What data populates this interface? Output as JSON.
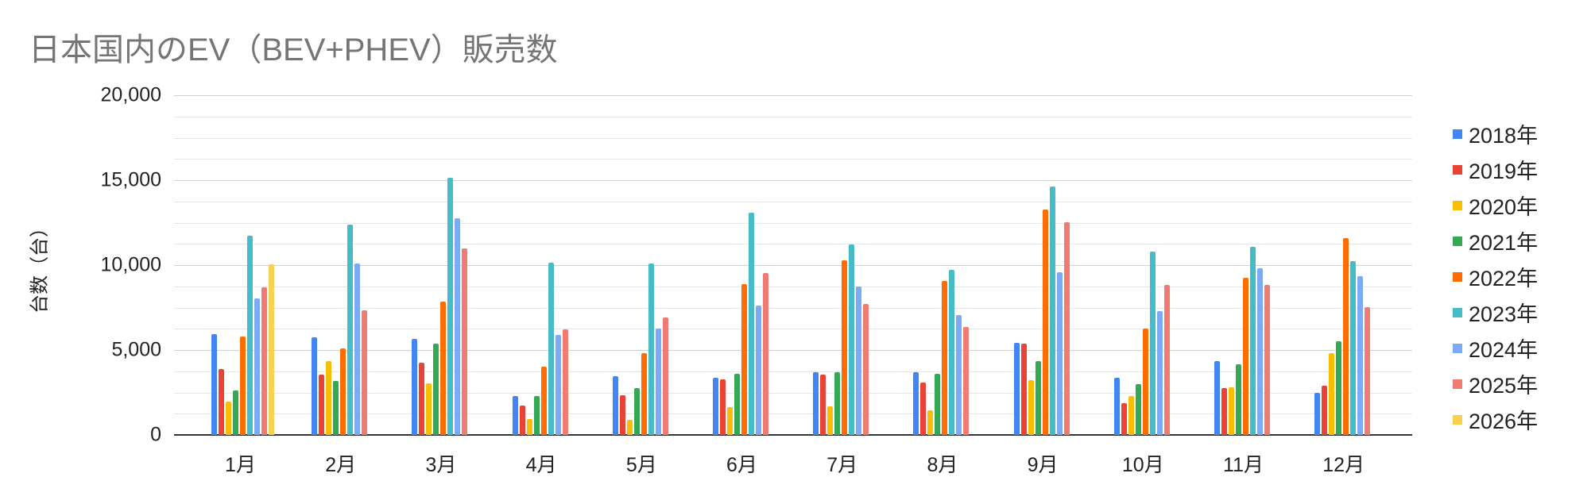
{
  "chart_data": {
    "type": "bar",
    "title": "日本国内のEV（BEV+PHEV）販売数",
    "xlabel": "",
    "ylabel": "台数（台）",
    "ylim": [
      0,
      20000
    ],
    "yticks": [
      0,
      5000,
      10000,
      15000,
      20000
    ],
    "ytick_labels": [
      "0",
      "5,000",
      "10,000",
      "15,000",
      "20,000"
    ],
    "minor_grid_step": 1250,
    "grid": true,
    "legend_position": "right",
    "categories": [
      "1月",
      "2月",
      "3月",
      "4月",
      "5月",
      "6月",
      "7月",
      "8月",
      "9月",
      "10月",
      "11月",
      "12月"
    ],
    "series": [
      {
        "name": "2018年",
        "color": "#4285f4",
        "values": [
          5920,
          5750,
          5650,
          2290,
          3460,
          3360,
          3690,
          3690,
          5420,
          3360,
          4350,
          2480
        ]
      },
      {
        "name": "2019年",
        "color": "#ea4335",
        "values": [
          3860,
          3550,
          4250,
          1730,
          2340,
          3270,
          3550,
          3080,
          5370,
          1870,
          2760,
          2900
        ]
      },
      {
        "name": "2020年",
        "color": "#fbbc04",
        "values": [
          1950,
          4330,
          3040,
          930,
          890,
          1640,
          1680,
          1450,
          3240,
          2290,
          2800,
          4810
        ]
      },
      {
        "name": "2021年",
        "color": "#34a853",
        "values": [
          2600,
          3180,
          5390,
          2290,
          2760,
          3600,
          3690,
          3600,
          4350,
          2990,
          4160,
          5510
        ]
      },
      {
        "name": "2022年",
        "color": "#ff6d01",
        "values": [
          5790,
          5090,
          7850,
          4020,
          4810,
          8880,
          10280,
          9070,
          13270,
          6260,
          9250,
          11590
        ]
      },
      {
        "name": "2023年",
        "color": "#46bdc6",
        "values": [
          11730,
          12380,
          15120,
          10140,
          10090,
          13070,
          11210,
          9720,
          14630,
          10790,
          11070,
          10230
        ]
      },
      {
        "name": "2024年",
        "color": "#7baaf7",
        "values": [
          8040,
          10090,
          12760,
          5890,
          6260,
          7600,
          8740,
          7060,
          9580,
          7290,
          9810,
          9350
        ]
      },
      {
        "name": "2025年",
        "color": "#f07b72",
        "values": [
          8690,
          7340,
          10980,
          6210,
          6920,
          9530,
          7710,
          6360,
          12520,
          8830,
          8830,
          7520
        ]
      },
      {
        "name": "2026年",
        "color": "#fcd04f",
        "values": [
          10050,
          null,
          null,
          null,
          null,
          null,
          null,
          null,
          null,
          null,
          null,
          null
        ]
      }
    ]
  }
}
